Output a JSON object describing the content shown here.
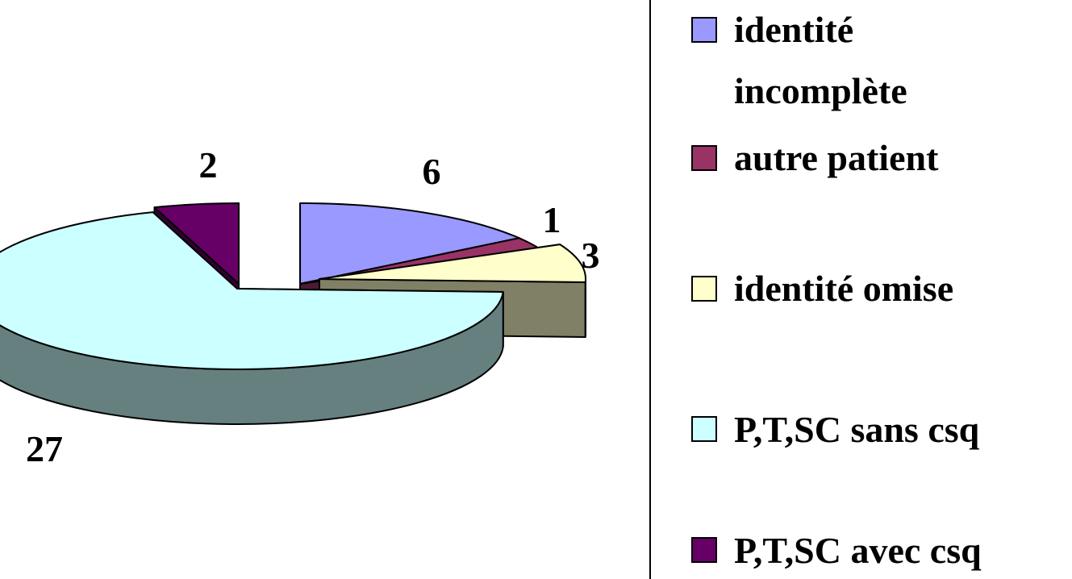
{
  "chart_data": {
    "type": "pie",
    "style": "3d-exploded",
    "categories": [
      "identité incomplète",
      "autre patient",
      "identité omise",
      "P,T,SC sans csq",
      "P,T,SC avec csq"
    ],
    "values": [
      6,
      1,
      3,
      27,
      2
    ],
    "colors": [
      "#9999ff",
      "#993366",
      "#ffffcc",
      "#ccffff",
      "#660066"
    ],
    "side_colors": [
      "#4d4d80",
      "#4d1a33",
      "#808066",
      "#668080",
      "#330033"
    ],
    "data_labels": [
      "6",
      "1",
      "3",
      "27",
      "2"
    ],
    "legend": {
      "placement": "right",
      "entries": [
        {
          "lines": [
            "identité",
            "incomplète"
          ]
        },
        {
          "lines": [
            "autre patient"
          ]
        },
        {
          "lines": [
            "identité omise"
          ]
        },
        {
          "lines": [
            "P,T,SC sans csq"
          ]
        },
        {
          "lines": [
            "P,T,SC avec csq"
          ]
        }
      ]
    },
    "title": ""
  }
}
